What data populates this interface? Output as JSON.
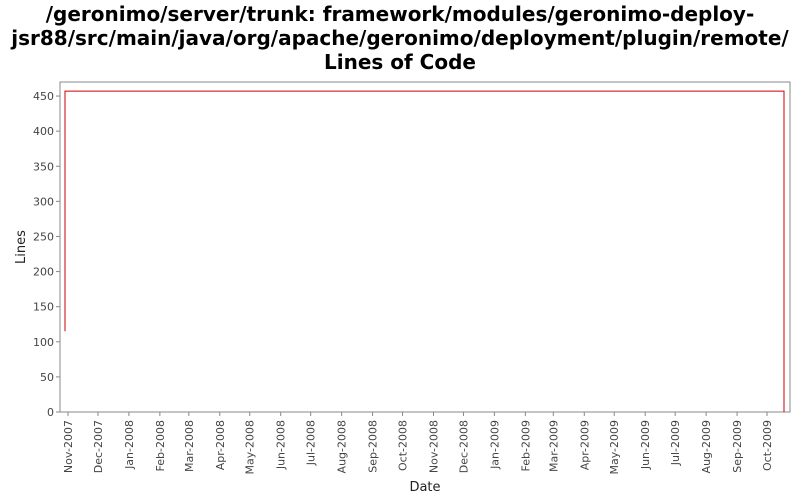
{
  "title_lines": [
    "/geronimo/server/trunk: framework/modules/geronimo-deploy-",
    "jsr88/src/main/java/org/apache/geronimo/deployment/plugin/remote/",
    "Lines of Code"
  ],
  "chart_data": {
    "type": "line",
    "title": "/geronimo/server/trunk: framework/modules/geronimo-deploy-jsr88/src/main/java/org/apache/geronimo/deployment/plugin/remote/ Lines of Code",
    "xlabel": "Date",
    "ylabel": "Lines",
    "ylim": [
      0,
      470
    ],
    "xlim": [
      "2007-10-24",
      "2009-10-24"
    ],
    "yticks": [
      0,
      50,
      100,
      150,
      200,
      250,
      300,
      350,
      400,
      450
    ],
    "xticks": [
      "Nov-2007",
      "Dec-2007",
      "Jan-2008",
      "Feb-2008",
      "Mar-2008",
      "Apr-2008",
      "May-2008",
      "Jun-2008",
      "Jul-2008",
      "Aug-2008",
      "Sep-2008",
      "Oct-2008",
      "Nov-2008",
      "Dec-2008",
      "Jan-2009",
      "Feb-2009",
      "Mar-2009",
      "Apr-2009",
      "May-2009",
      "Jun-2009",
      "Jul-2009",
      "Aug-2009",
      "Sep-2009",
      "Oct-2009"
    ],
    "grid": false,
    "line_color": "#cc0000",
    "series": [
      {
        "x": [
          "2007-10-29",
          "2007-10-29",
          "2009-10-18",
          "2009-10-18"
        ],
        "values": [
          115,
          457,
          457,
          0
        ]
      }
    ]
  }
}
